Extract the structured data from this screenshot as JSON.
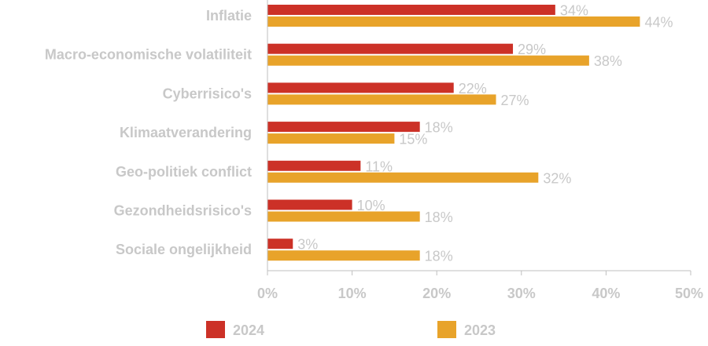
{
  "chart_data": {
    "type": "bar",
    "orientation": "horizontal",
    "categories": [
      "Inflatie",
      "Macro-economische volatiliteit ",
      "Cyberrisico's",
      "Klimaatverandering",
      "Geo-politiek conflict",
      "Gezondheidsrisico's",
      "Sociale ongelijkheid"
    ],
    "series": [
      {
        "name": "2024",
        "color": "#cc3127",
        "values": [
          34,
          29,
          22,
          18,
          11,
          10,
          3
        ]
      },
      {
        "name": "2023",
        "color": "#e8a32a",
        "values": [
          44,
          38,
          27,
          15,
          32,
          18,
          18
        ]
      }
    ],
    "value_suffix": "%",
    "xlim": [
      0,
      50
    ],
    "x_ticks": [
      "0%",
      "10%",
      "20%",
      "30%",
      "40%",
      "50%"
    ],
    "x_tick_values": [
      0,
      10,
      20,
      30,
      40,
      50
    ],
    "grid": false,
    "legend_position": "bottom"
  }
}
